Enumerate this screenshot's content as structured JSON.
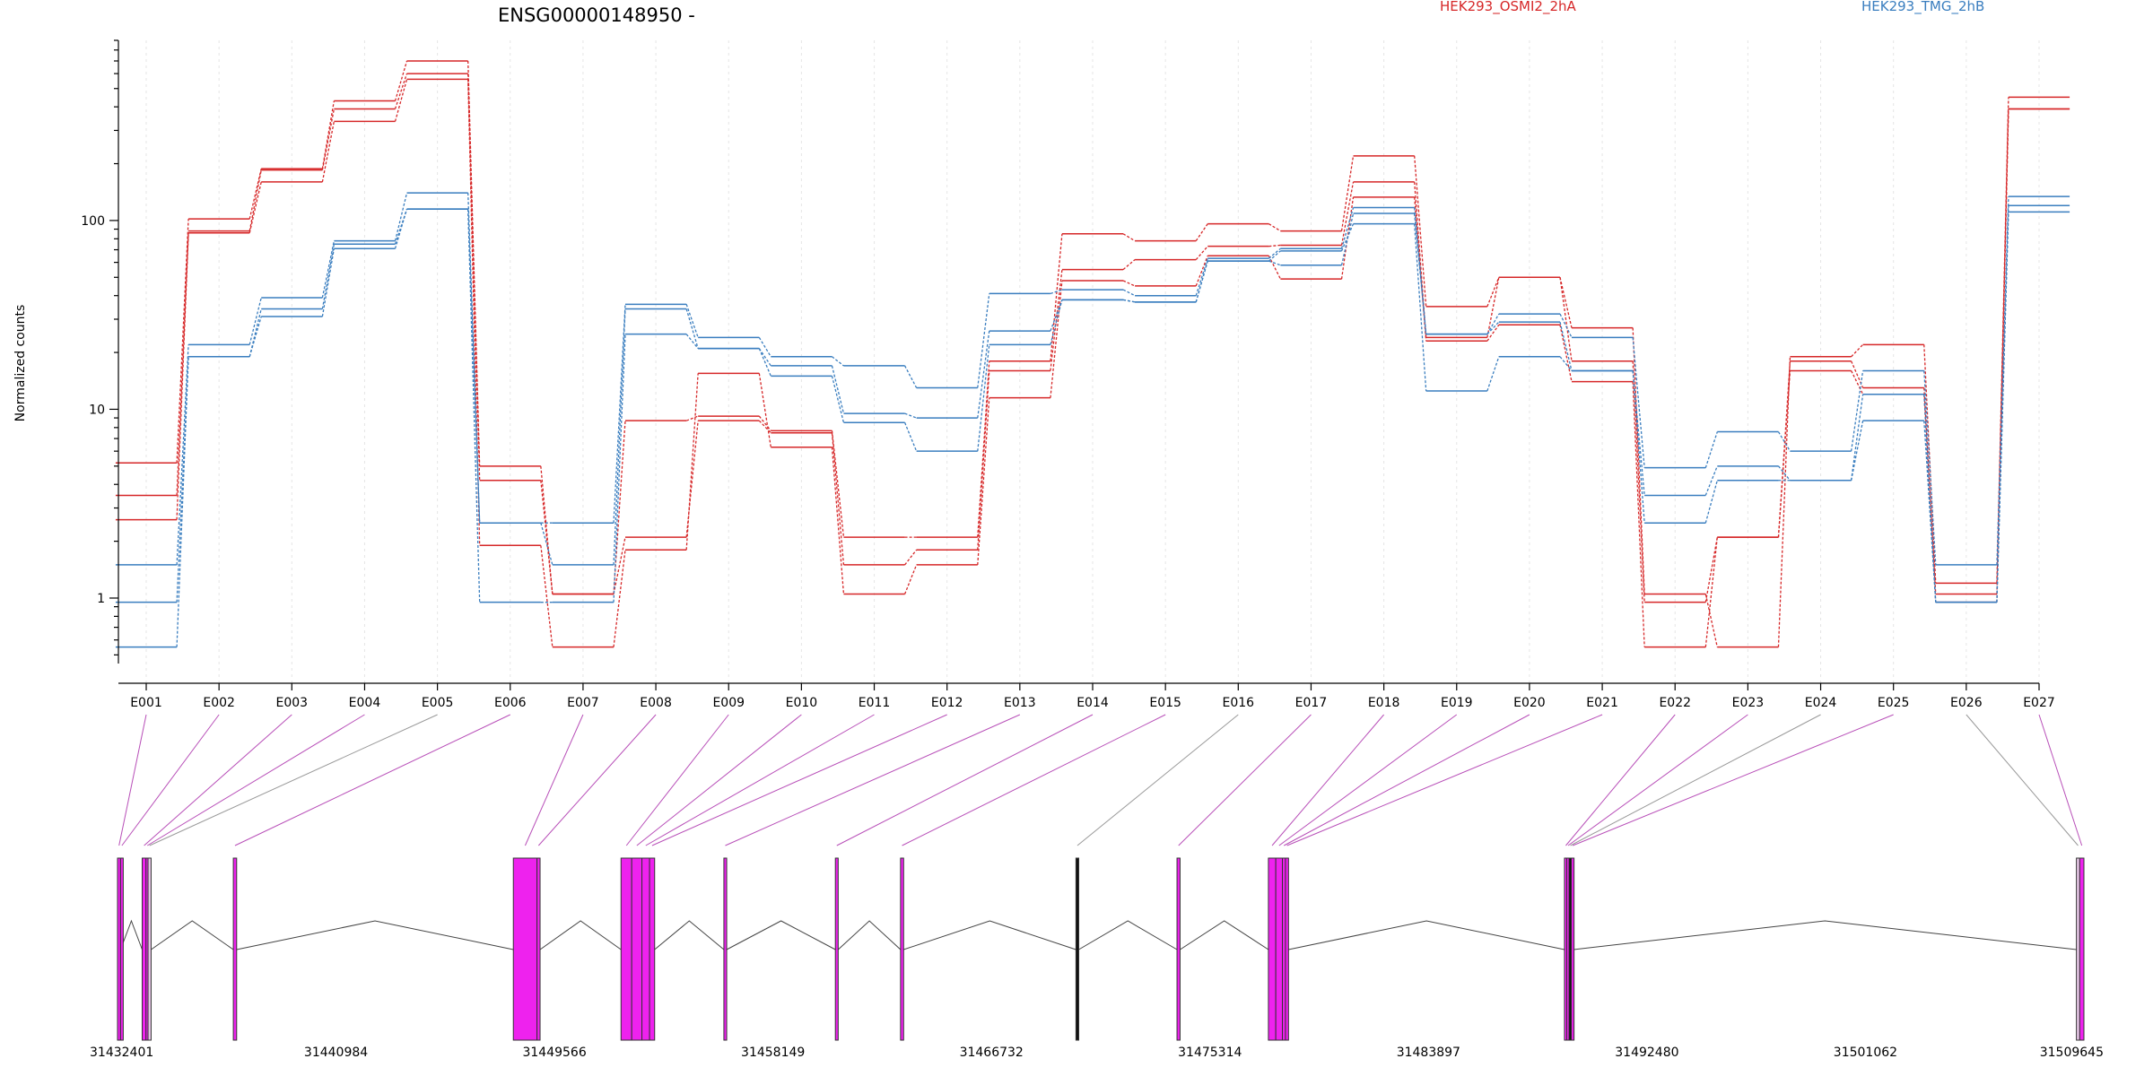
{
  "chart_data": {
    "type": "line",
    "title": "ENSG00000148950 -",
    "xlabel": "",
    "ylabel": "Normalized counts",
    "yscale": "log",
    "ylim": [
      0.45,
      900
    ],
    "yticks": [
      1,
      10,
      100
    ],
    "ytick_labels": [
      "1",
      "10",
      "100"
    ],
    "grid": "vertical dotted",
    "legend_placement": "top",
    "categories": [
      "E001",
      "E002",
      "E003",
      "E004",
      "E005",
      "E006",
      "E007",
      "E008",
      "E009",
      "E010",
      "E011",
      "E012",
      "E013",
      "E014",
      "E015",
      "E016",
      "E017",
      "E018",
      "E019",
      "E020",
      "E021",
      "E022",
      "E023",
      "E024",
      "E025",
      "E026",
      "E027"
    ],
    "groups": [
      {
        "name": "HEK293_OSMI2_2hA",
        "color": "#d62728"
      },
      {
        "name": "HEK293_TMG_2hB",
        "color": "#3a7ebf"
      }
    ],
    "series": [
      {
        "group": 0,
        "values": [
          5.2,
          102,
          188,
          430,
          700,
          5.0,
          1.05,
          8.7,
          9.2,
          7.7,
          2.1,
          2.1,
          18,
          85,
          78,
          96,
          88,
          220,
          35,
          50,
          27,
          1.05,
          0.55,
          19,
          22,
          1.2,
          450
        ]
      },
      {
        "group": 0,
        "values": [
          3.5,
          88,
          185,
          390,
          600,
          4.2,
          1.05,
          2.1,
          8.7,
          7.5,
          1.5,
          1.8,
          16,
          55,
          62,
          73,
          74,
          160,
          24,
          50,
          18,
          0.95,
          2.1,
          18,
          13,
          1.05,
          390
        ]
      },
      {
        "group": 0,
        "values": [
          2.6,
          86,
          160,
          335,
          560,
          1.9,
          0.55,
          1.8,
          15.5,
          6.3,
          1.05,
          1.5,
          11.5,
          48,
          45,
          65,
          49,
          133,
          23,
          28,
          14,
          0.55,
          2.1,
          16,
          12,
          0.95,
          390
        ]
      },
      {
        "group": 1,
        "values": [
          1.5,
          22,
          39,
          78,
          140,
          2.5,
          2.5,
          36,
          24,
          19,
          17,
          13,
          41,
          43,
          40,
          63,
          71,
          117,
          25,
          32,
          24,
          4.9,
          7.6,
          6,
          16,
          1.5,
          134
        ]
      },
      {
        "group": 1,
        "values": [
          0.95,
          19,
          34,
          75,
          115,
          2.5,
          1.5,
          34,
          21,
          17,
          9.5,
          9,
          26,
          38,
          37,
          61,
          58,
          109,
          25,
          29,
          16,
          3.5,
          5,
          4.2,
          12,
          0.95,
          120
        ]
      },
      {
        "group": 1,
        "values": [
          0.55,
          19,
          31,
          71,
          115,
          0.95,
          0.95,
          25,
          21,
          15,
          8.5,
          6,
          22,
          38,
          37,
          61,
          69,
          96,
          12.5,
          19,
          16,
          2.5,
          4.2,
          4.2,
          8.7,
          0.95,
          111
        ]
      }
    ],
    "coordinate_axis": {
      "range": [
        31432401,
        31509645
      ],
      "tick_labels": [
        "31432401",
        "31440984",
        "31449566",
        "31458149",
        "31466732",
        "31475314",
        "31483897",
        "31492480",
        "31501062",
        "31509645"
      ]
    },
    "exons": [
      {
        "id": "E001",
        "start": 31432401,
        "end": 31432520,
        "color": "#ee22ee"
      },
      {
        "id": "E002",
        "start": 31432520,
        "end": 31432620,
        "color": "#ee22ee"
      },
      {
        "id": "E003",
        "start": 31433370,
        "end": 31433520,
        "color": "#ee22ee"
      },
      {
        "id": "E004",
        "start": 31433520,
        "end": 31433600,
        "color": "#ee22ee"
      },
      {
        "id": "E005",
        "start": 31433600,
        "end": 31433720,
        "color": "#e8c8e8"
      },
      {
        "id": "E006",
        "start": 31436950,
        "end": 31437080,
        "color": "#ee22ee"
      },
      {
        "id": "E007",
        "start": 31447950,
        "end": 31448880,
        "color": "#ee22ee"
      },
      {
        "id": "E008",
        "start": 31448880,
        "end": 31449000,
        "color": "#ee22ee"
      },
      {
        "id": "E009",
        "start": 31452180,
        "end": 31452600,
        "color": "#ee22ee"
      },
      {
        "id": "E010",
        "start": 31452600,
        "end": 31453000,
        "color": "#ee22ee"
      },
      {
        "id": "E011",
        "start": 31453000,
        "end": 31453300,
        "color": "#ee22ee"
      },
      {
        "id": "E012",
        "start": 31453300,
        "end": 31453500,
        "color": "#ee22ee"
      },
      {
        "id": "E013",
        "start": 31456220,
        "end": 31456330,
        "color": "#ee22ee"
      },
      {
        "id": "E014",
        "start": 31460600,
        "end": 31460710,
        "color": "#ee22ee"
      },
      {
        "id": "E015",
        "start": 31463160,
        "end": 31463280,
        "color": "#ee22ee"
      },
      {
        "id": "E016",
        "start": 31470050,
        "end": 31470160,
        "color": "#111111"
      },
      {
        "id": "E017",
        "start": 31474020,
        "end": 31474140,
        "color": "#ee22ee"
      },
      {
        "id": "E018",
        "start": 31477610,
        "end": 31477900,
        "color": "#ee22ee"
      },
      {
        "id": "E019",
        "start": 31477900,
        "end": 31478160,
        "color": "#ee22ee"
      },
      {
        "id": "E020",
        "start": 31478160,
        "end": 31478280,
        "color": "#ee22ee"
      },
      {
        "id": "E021",
        "start": 31478280,
        "end": 31478400,
        "color": "#ee22ee"
      },
      {
        "id": "E022",
        "start": 31489240,
        "end": 31489330,
        "color": "#ee22ee"
      },
      {
        "id": "E023",
        "start": 31489330,
        "end": 31489420,
        "color": "#ee22ee"
      },
      {
        "id": "E024",
        "start": 31489420,
        "end": 31489510,
        "color": "#111111"
      },
      {
        "id": "E025",
        "start": 31489510,
        "end": 31489600,
        "color": "#ee22ee"
      },
      {
        "id": "E026",
        "start": 31509350,
        "end": 31509480,
        "color": "#e8c8e8"
      },
      {
        "id": "E027",
        "start": 31509480,
        "end": 31509645,
        "color": "#ee22ee"
      }
    ],
    "intron_peaks": [
      [
        31432520,
        31433370
      ],
      [
        31433720,
        31436950
      ],
      [
        31437080,
        31447950
      ],
      [
        31449000,
        31452180
      ],
      [
        31453500,
        31456220
      ],
      [
        31456330,
        31460600
      ],
      [
        31460710,
        31463160
      ],
      [
        31463280,
        31470050
      ],
      [
        31470160,
        31474020
      ],
      [
        31474140,
        31477610
      ],
      [
        31478400,
        31489240
      ],
      [
        31489600,
        31509350
      ]
    ]
  }
}
